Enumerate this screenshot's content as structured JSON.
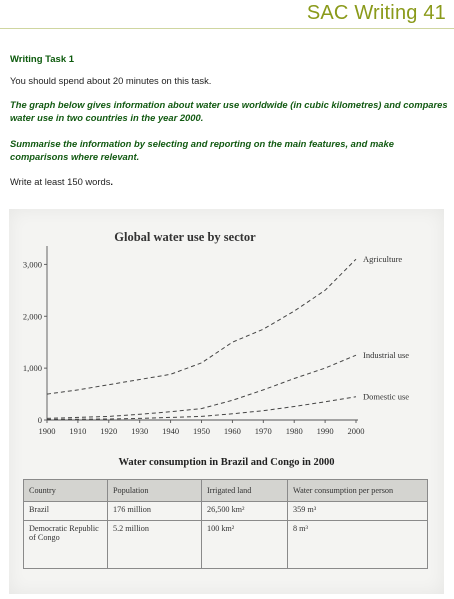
{
  "header": {
    "title": "SAC Writing 41"
  },
  "task": {
    "heading": "Writing Task 1",
    "time_note": "You should spend about 20 minutes on this task.",
    "intro": "The graph below gives information about water use worldwide (in cubic kilometres) and compares water use in two countries in the year 2000.",
    "instruction": "Summarise the information by selecting and reporting on the main features, and make comparisons where relevant.",
    "words_prefix": "Write at least 150 words",
    "words_suffix": "."
  },
  "chart_data": {
    "type": "line",
    "title": "Global water use by sector",
    "xlabel": "",
    "ylabel": "",
    "x": [
      1900,
      1910,
      1920,
      1930,
      1940,
      1950,
      1960,
      1970,
      1980,
      1990,
      2000
    ],
    "x_ticks": [
      "1900",
      "1910",
      "1920",
      "1930",
      "1940",
      "1950",
      "1960",
      "1970",
      "1980",
      "1990",
      "2000"
    ],
    "y_ticks": [
      "0",
      "1,000",
      "2,000",
      "3,000"
    ],
    "ylim": [
      0,
      3200
    ],
    "grid": false,
    "line_style": "dashed",
    "series": [
      {
        "name": "Agriculture",
        "values": [
          500,
          580,
          680,
          780,
          880,
          1100,
          1500,
          1750,
          2100,
          2500,
          3100
        ]
      },
      {
        "name": "Industrial use",
        "values": [
          30,
          50,
          70,
          110,
          160,
          220,
          380,
          580,
          800,
          1000,
          1250
        ]
      },
      {
        "name": "Domestic use",
        "values": [
          10,
          15,
          20,
          30,
          50,
          70,
          120,
          180,
          260,
          350,
          450
        ]
      }
    ]
  },
  "table": {
    "title": "Water consumption in Brazil and Congo in 2000",
    "headers": [
      "Country",
      "Population",
      "Irrigated land",
      "Water consumption per person"
    ],
    "rows": [
      [
        "Brazil",
        "176 million",
        "26,500 km²",
        "359 m³"
      ],
      [
        "Democratic Republic of Congo",
        "5.2 million",
        "100 km²",
        "8 m³"
      ]
    ]
  }
}
